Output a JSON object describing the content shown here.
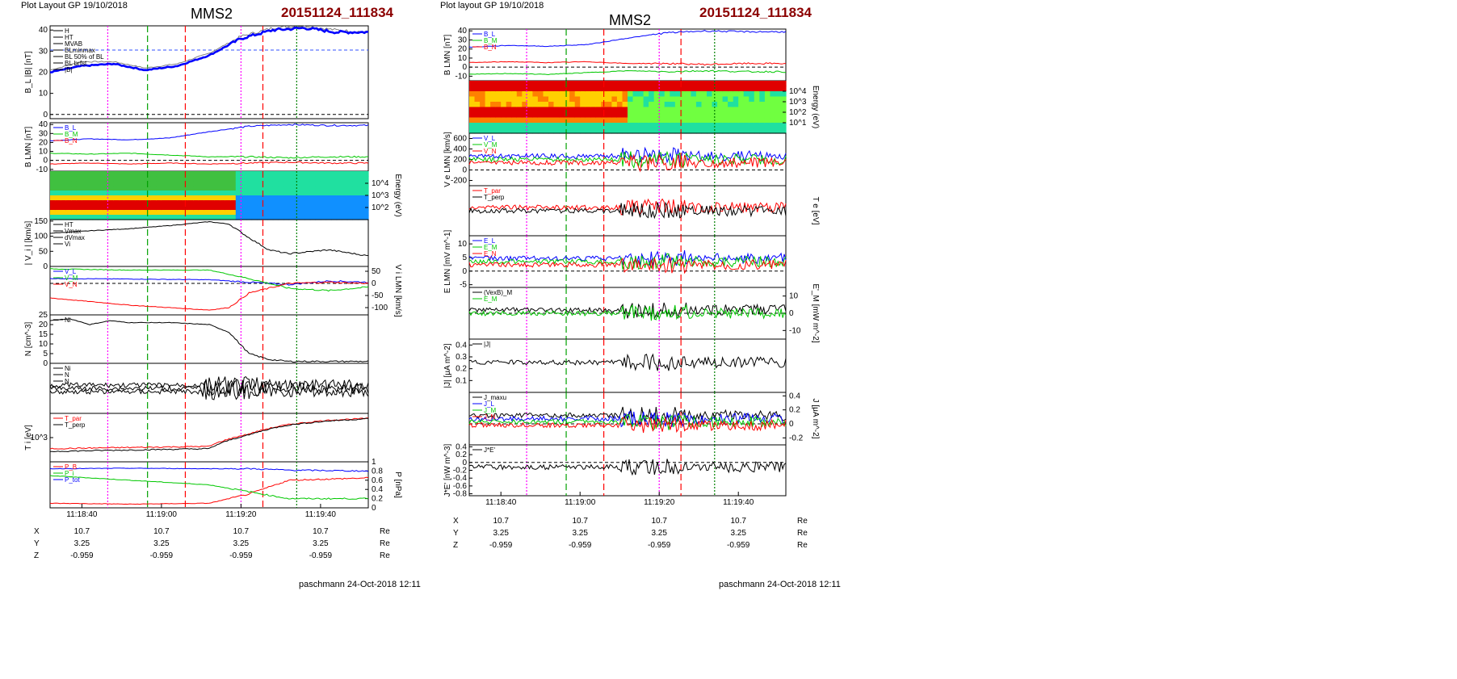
{
  "header": {
    "left": {
      "layout": "Plot Layout GP 19/10/2018",
      "spacecraft": "MMS2",
      "event": "20151124_111834"
    },
    "right": {
      "layout": "Plot layout GP 19/10/2018",
      "spacecraft": "MMS2",
      "event": "20151124_111834"
    }
  },
  "footer": {
    "left": "paschmann 24-Oct-2018 12:11",
    "right": "paschmann 24-Oct-2018 12:11"
  },
  "colors": {
    "B_L": "#0000ff",
    "B_M": "#00c800",
    "B_N": "#ff0000",
    "total": "#000000",
    "gray": "#808080",
    "magenta": "#ff00ff",
    "cyan": "#00bfff",
    "title_red": "#8b0000"
  },
  "time_axis": {
    "ticks": [
      "11:18:40",
      "11:19:00",
      "11:19:20",
      "11:19:40"
    ],
    "start": "11:18:32",
    "end": "11:19:52"
  },
  "orbit": {
    "labels": [
      "X",
      "Y",
      "Z"
    ],
    "rows": [
      [
        "10.7",
        "10.7",
        "10.7",
        "10.7"
      ],
      [
        "3.25",
        "3.25",
        "3.25",
        "3.25"
      ],
      [
        "-0.959",
        "-0.959",
        "-0.959",
        "-0.959"
      ]
    ],
    "unit": "Re"
  },
  "chart_data": [
    {
      "type": "line",
      "figure": "left",
      "panel": "B_L |B|",
      "ylabel": "B_L |B| [nT]",
      "ylim": [
        -2,
        42
      ],
      "yticks": [
        0,
        10,
        20,
        30,
        40
      ],
      "legend": [
        "H",
        "HT",
        "MVAB",
        "BLminmax",
        "BL 50% of BL",
        "BL brfst",
        "|B|"
      ],
      "series": [
        {
          "name": "|B|",
          "x": [
            0,
            8,
            16,
            24,
            32,
            40,
            48,
            56,
            64,
            72,
            80
          ],
          "values": [
            21,
            25,
            25,
            22,
            24,
            29,
            37,
            41,
            42,
            40,
            39
          ]
        },
        {
          "name": "B_L",
          "x": [
            0,
            8,
            16,
            24,
            32,
            40,
            48,
            56,
            64,
            72,
            80
          ],
          "values": [
            20,
            23,
            24,
            21,
            23,
            28,
            36,
            40,
            41,
            39,
            39
          ]
        }
      ],
      "hlines": [
        30.5
      ]
    },
    {
      "type": "line",
      "figure": "left",
      "panel": "B LMN",
      "ylabel": "B LMN [nT]",
      "ylim": [
        -12,
        42
      ],
      "yticks": [
        -10,
        0,
        10,
        20,
        30,
        40
      ],
      "legend": [
        "B_L",
        "B_M",
        "B_N"
      ],
      "series": [
        {
          "name": "B_L",
          "x": [
            0,
            10,
            20,
            30,
            40,
            50,
            60,
            70,
            80
          ],
          "values": [
            22,
            24,
            23,
            25,
            32,
            38,
            40,
            39,
            39
          ]
        },
        {
          "name": "B_M",
          "x": [
            0,
            10,
            20,
            30,
            40,
            50,
            60,
            70,
            80
          ],
          "values": [
            8,
            7,
            8,
            6,
            4,
            4,
            3,
            4,
            4
          ]
        },
        {
          "name": "B_N",
          "x": [
            0,
            10,
            20,
            30,
            40,
            50,
            60,
            70,
            80
          ],
          "values": [
            -4,
            -3,
            -4,
            -3,
            -4,
            -3,
            -2,
            -3,
            -3
          ]
        }
      ]
    },
    {
      "type": "heatmap",
      "figure": "left",
      "panel": "ion energy spectrogram",
      "ylabel": "Energy (eV)",
      "yticks": [
        "10^2",
        "10^3",
        "10^4"
      ]
    },
    {
      "type": "line",
      "figure": "left",
      "panel": "|Vi|",
      "ylabel": "| V_i | [km/s]",
      "ylim": [
        0,
        155
      ],
      "yticks": [
        0,
        50,
        100,
        150
      ],
      "legend": [
        "HT",
        "Vmax",
        "dVmax",
        "Vi"
      ],
      "series": [
        {
          "name": "|Vi|",
          "x": [
            0,
            10,
            20,
            30,
            40,
            45,
            50,
            55,
            60,
            70,
            80
          ],
          "values": [
            110,
            118,
            125,
            135,
            148,
            140,
            95,
            55,
            42,
            55,
            35
          ]
        }
      ]
    },
    {
      "type": "line",
      "figure": "left",
      "panel": "Vi LMN",
      "ylabel": "V i LMN [km/s]",
      "ylim": [
        -130,
        70
      ],
      "yticks": [
        -100,
        -50,
        0,
        50
      ],
      "legend": [
        "V_L",
        "V_M",
        "V_N"
      ],
      "series": [
        {
          "name": "V_L",
          "x": [
            0,
            20,
            40,
            50,
            60,
            70,
            80
          ],
          "values": [
            20,
            18,
            15,
            5,
            -5,
            10,
            5
          ]
        },
        {
          "name": "V_M",
          "x": [
            0,
            20,
            40,
            50,
            60,
            70,
            80
          ],
          "values": [
            60,
            55,
            55,
            20,
            -20,
            -30,
            -15
          ]
        },
        {
          "name": "V_N",
          "x": [
            0,
            20,
            40,
            45,
            50,
            60,
            70,
            80
          ],
          "values": [
            -60,
            -90,
            -110,
            -100,
            -40,
            0,
            5,
            0
          ]
        }
      ]
    },
    {
      "type": "line",
      "figure": "left",
      "panel": "N",
      "ylabel": "N [cm^-3]",
      "ylim": [
        0,
        25
      ],
      "yticks": [
        0,
        5,
        10,
        15,
        20,
        25
      ],
      "legend": [
        "Ni"
      ],
      "series": [
        {
          "name": "Ni",
          "x": [
            0,
            5,
            10,
            15,
            20,
            30,
            40,
            45,
            50,
            55,
            60,
            70,
            80
          ],
          "values": [
            22,
            23,
            20,
            22,
            21,
            21,
            20,
            16,
            5,
            2,
            1,
            1,
            1
          ]
        }
      ]
    },
    {
      "type": "line",
      "figure": "left",
      "panel": "N (scaled)",
      "legend": [
        "Ni",
        "N",
        "N"
      ]
    },
    {
      "type": "line",
      "figure": "left",
      "panel": "Ti",
      "ylabel": "T i [eV]",
      "yticks": [
        "10^3"
      ],
      "legend": [
        "T_par",
        "T_perp"
      ],
      "series": [
        {
          "name": "T_par",
          "x": [
            0,
            20,
            40,
            50,
            60,
            70,
            80
          ],
          "values": [
            120,
            130,
            140,
            320,
            600,
            800,
            900
          ]
        },
        {
          "name": "T_perp",
          "x": [
            0,
            20,
            40,
            50,
            60,
            70,
            80
          ],
          "values": [
            100,
            110,
            120,
            300,
            580,
            760,
            880
          ]
        }
      ]
    },
    {
      "type": "line",
      "figure": "left",
      "panel": "P",
      "ylabel": "P [nPa]",
      "ylim": [
        0,
        1.0
      ],
      "yticks": [
        0.0,
        0.2,
        0.4,
        0.6,
        0.8,
        1.0
      ],
      "legend": [
        "P_B",
        "P_i",
        "P_tot"
      ],
      "series": [
        {
          "name": "P_B",
          "x": [
            0,
            20,
            40,
            50,
            60,
            80
          ],
          "values": [
            0.1,
            0.08,
            0.1,
            0.3,
            0.6,
            0.65
          ]
        },
        {
          "name": "P_i",
          "x": [
            0,
            20,
            40,
            50,
            60,
            80
          ],
          "values": [
            0.7,
            0.6,
            0.5,
            0.35,
            0.2,
            0.2
          ]
        },
        {
          "name": "P_tot",
          "x": [
            0,
            20,
            40,
            50,
            60,
            80
          ],
          "values": [
            0.85,
            0.86,
            0.85,
            0.85,
            0.82,
            0.8
          ]
        }
      ]
    },
    {
      "type": "line",
      "figure": "right",
      "panel": "B LMN",
      "ylabel": "B LMN [nT]",
      "ylim": [
        -15,
        42
      ],
      "yticks": [
        -10,
        0,
        10,
        20,
        30,
        40
      ],
      "legend": [
        "B_L",
        "B_M",
        "B_N"
      ],
      "series": [
        {
          "name": "B_L",
          "x": [
            0,
            10,
            20,
            30,
            40,
            50,
            60,
            70,
            80
          ],
          "values": [
            22,
            24,
            23,
            25,
            32,
            38,
            40,
            39,
            39
          ]
        },
        {
          "name": "B_M",
          "x": [
            0,
            10,
            20,
            30,
            40,
            50,
            60,
            70,
            80
          ],
          "values": [
            -8,
            -7,
            -8,
            -6,
            -4,
            -5,
            -4,
            -5,
            -5
          ]
        },
        {
          "name": "B_N",
          "x": [
            0,
            10,
            20,
            30,
            40,
            50,
            60,
            70,
            80
          ],
          "values": [
            5,
            6,
            5,
            6,
            4,
            4,
            3,
            4,
            4
          ]
        }
      ]
    },
    {
      "type": "heatmap",
      "figure": "right",
      "panel": "electron energy spectrogram",
      "ylabel": "Energy (eV)",
      "yticks": [
        "10^1",
        "10^2",
        "10^3",
        "10^4"
      ]
    },
    {
      "type": "line",
      "figure": "right",
      "panel": "Ve LMN",
      "ylabel": "V e LMN [km/s]",
      "ylim": [
        -300,
        700
      ],
      "yticks": [
        -200,
        0,
        200,
        400,
        600
      ],
      "legend": [
        "V_L",
        "V_M",
        "V_N"
      ]
    },
    {
      "type": "line",
      "figure": "right",
      "panel": "Te",
      "ylabel": "T e [eV]",
      "legend": [
        "T_par",
        "T_perp"
      ]
    },
    {
      "type": "line",
      "figure": "right",
      "panel": "E LMN",
      "ylabel": "E LMN [mV m^-1]",
      "ylim": [
        -6,
        13
      ],
      "yticks": [
        -5,
        0,
        5,
        10
      ],
      "legend": [
        "E_L",
        "E_M",
        "E_N"
      ]
    },
    {
      "type": "line",
      "figure": "right",
      "panel": "E'_M",
      "ylabel": "E'_M [mW m^-2]",
      "ylim": [
        -15,
        15
      ],
      "yticks": [
        -10,
        0,
        10
      ],
      "legend": [
        "(VexB)_M",
        "E_M"
      ]
    },
    {
      "type": "line",
      "figure": "right",
      "panel": "|J|",
      "ylabel": "|J| [μA m^-2]",
      "ylim": [
        0,
        0.45
      ],
      "yticks": [
        0.1,
        0.2,
        0.3,
        0.4
      ],
      "legend": [
        "|J|"
      ]
    },
    {
      "type": "line",
      "figure": "right",
      "panel": "J",
      "ylabel": "J [μA m^-2]",
      "ylim": [
        -0.3,
        0.45
      ],
      "yticks": [
        -0.2,
        0.0,
        0.2,
        0.4
      ],
      "legend": [
        "J_maxu",
        "J_L",
        "J_M",
        "J_N"
      ]
    },
    {
      "type": "line",
      "figure": "right",
      "panel": "J*E'",
      "ylabel": "J*E' [nW m^-3]",
      "ylim": [
        -0.85,
        0.45
      ],
      "yticks": [
        -0.8,
        -0.6,
        -0.4,
        -0.2,
        0.0,
        0.2,
        0.4
      ],
      "legend": [
        "J*E'"
      ]
    }
  ]
}
